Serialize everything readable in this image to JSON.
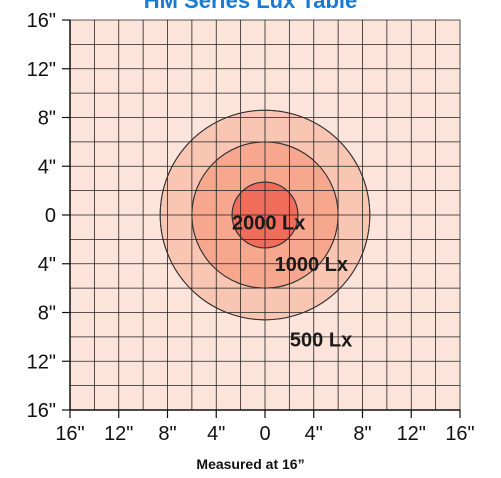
{
  "chart_data": {
    "type": "heatmap",
    "title": "HM Series Lux Table",
    "xlabel": "",
    "ylabel": "",
    "caption": "Measured at 16”",
    "x_tick_labels": [
      "16\"",
      "12\"",
      "8\"",
      "4\"",
      "0",
      "4\"",
      "8\"",
      "12\"",
      "16\""
    ],
    "y_tick_labels": [
      "16\"",
      "12\"",
      "8\"",
      "4\"",
      "0",
      "4\"",
      "8\"",
      "12\"",
      "16\""
    ],
    "x_tick_values": [
      -16,
      -12,
      -8,
      -4,
      0,
      4,
      8,
      12,
      16
    ],
    "y_tick_values": [
      16,
      12,
      8,
      4,
      0,
      -4,
      -8,
      -12,
      -16
    ],
    "xlim": [
      -16,
      16
    ],
    "ylim": [
      -16,
      16
    ],
    "grid": true,
    "grid_step": 2,
    "zones": [
      {
        "label": "500 Lx",
        "radius": 8.6,
        "color": "#f9c6b4"
      },
      {
        "label": "1000 Lx",
        "radius": 6.0,
        "color": "#f6a78e"
      },
      {
        "label": "2000 Lx",
        "radius": 2.7,
        "color": "#f06d5b"
      }
    ],
    "background_color": "#fde4da"
  }
}
